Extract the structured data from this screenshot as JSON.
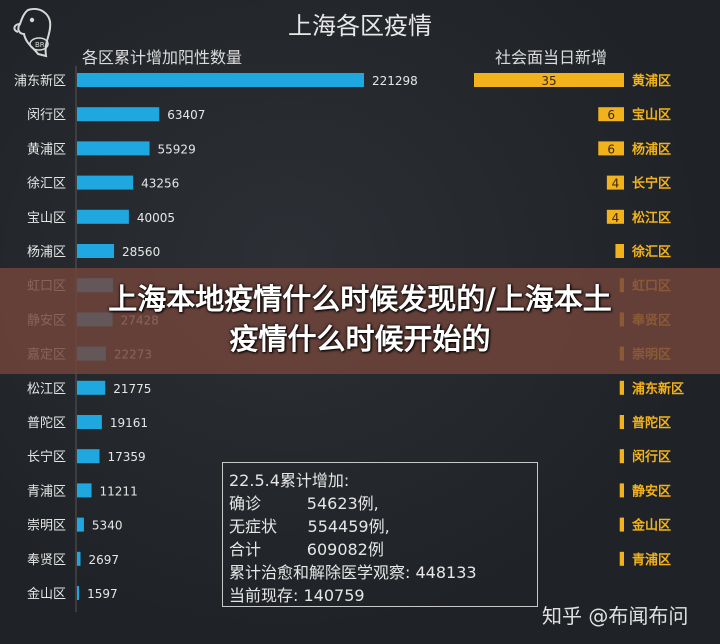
{
  "title": "上海各区疫情",
  "left_subtitle": "各区累计增加阳性数量",
  "right_subtitle": "社会面当日新增",
  "overlay_title": "上海本地疫情什么时候发现的/上海本土疫情什么时候开始的",
  "overlay_lines": [
    "上海本地疫情什么时候发现的/上海本土",
    "疫情什么时候开始的"
  ],
  "notes": [
    "22.5.4累计增加:",
    "确诊         54623例,",
    "无症状      554459例,",
    "合计         609082例",
    "累计治愈和解除医学观察: 448133",
    "当前现存: 140759"
  ],
  "watermark": "知乎 @布闻布问",
  "logo_text": "BR",
  "colors": {
    "left_bar": "#1fa8e0",
    "right_bar": "#f2b21b",
    "background": "#1f2226"
  },
  "chart_data": [
    {
      "type": "bar",
      "orientation": "horizontal",
      "title": "各区累计增加阳性数量",
      "categories": [
        "浦东新区",
        "闵行区",
        "黄浦区",
        "徐汇区",
        "宝山区",
        "杨浦区",
        "虹口区",
        "静安区",
        "嘉定区",
        "松江区",
        "普陀区",
        "长宁区",
        "青浦区",
        "崇明区",
        "奉贤区",
        "金山区"
      ],
      "values": [
        221298,
        63407,
        55929,
        43256,
        40005,
        28560,
        27723,
        27428,
        22273,
        21775,
        19161,
        17359,
        11211,
        5340,
        2697,
        1597
      ],
      "value_labels": [
        "221298",
        "63407",
        "55929",
        "43256",
        "40005",
        "28560",
        "",
        "27428",
        "22273",
        "21775",
        "19161",
        "17359",
        "11211",
        "5340",
        "2697",
        "1597"
      ]
    },
    {
      "type": "bar",
      "orientation": "horizontal",
      "title": "社会面当日新增",
      "categories": [
        "黄浦区",
        "宝山区",
        "杨浦区",
        "长宁区",
        "松江区",
        "徐汇区",
        "虹口区",
        "奉贤区",
        "崇明区",
        "浦东新区",
        "普陀区",
        "闵行区",
        "静安区",
        "金山区",
        "青浦区"
      ],
      "values": [
        35,
        6,
        6,
        4,
        4,
        2,
        1,
        1,
        1,
        1,
        1,
        1,
        1,
        1,
        1
      ],
      "value_labels": [
        "35",
        "6",
        "6",
        "4",
        "4",
        "",
        "",
        "",
        "",
        "",
        "",
        "",
        "",
        "",
        ""
      ]
    }
  ]
}
